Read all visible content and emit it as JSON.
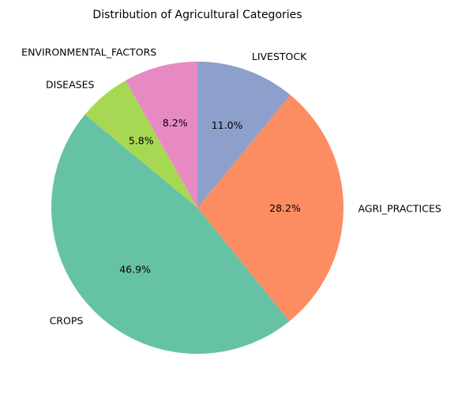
{
  "chart_data": {
    "type": "pie",
    "title": "Distribution of Agricultural Categories",
    "categories": [
      "LIVESTOCK",
      "AGRI_PRACTICES",
      "CROPS",
      "DISEASES",
      "ENVIRONMENTAL_FACTORS"
    ],
    "values": [
      11.0,
      28.2,
      46.9,
      5.8,
      8.2
    ],
    "percent_labels": [
      "11.0%",
      "28.2%",
      "46.9%",
      "5.8%",
      "8.2%"
    ],
    "colors": [
      "#8da0cb",
      "#fc8d62",
      "#66c2a5",
      "#a6d854",
      "#e78ac3"
    ],
    "start_angle_deg": 90,
    "direction": "clockwise",
    "legend": "none"
  }
}
